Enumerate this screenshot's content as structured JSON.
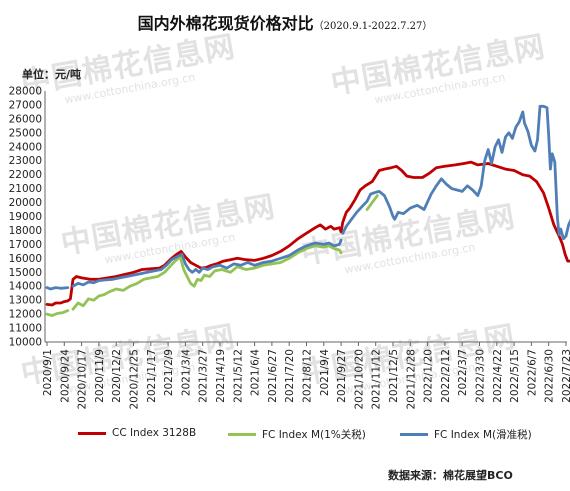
{
  "title": "国内外棉花现货价格对比",
  "title_range": "（2020.9.1-2022.7.27）",
  "unit_label": "单位：元/吨",
  "source": "数据来源：棉花展望BCO",
  "watermark": {
    "text": "中国棉花信息网",
    "url": "www.cottonchina.org.cn"
  },
  "chart_data": {
    "type": "line",
    "title": "国内外棉花现货价格对比",
    "ylabel": "单位：元/吨",
    "ylim": [
      10000,
      28000
    ],
    "ytick_step": 1000,
    "y_ticks": [
      "10000",
      "11000",
      "12000",
      "13000",
      "14000",
      "15000",
      "16000",
      "17000",
      "18000",
      "19000",
      "20000",
      "21000",
      "22000",
      "23000",
      "24000",
      "25000",
      "26000",
      "27000",
      "28000"
    ],
    "x_ticks": [
      "2020/9/1",
      "2020/9/24",
      "2020/10/17",
      "2020/11/9",
      "2020/12/2",
      "2020/12/25",
      "2021/1/17",
      "2021/2/9",
      "2021/3/4",
      "2021/3/27",
      "2021/4/19",
      "2021/5/12",
      "2021/6/4",
      "2021/6/27",
      "2021/7/20",
      "2021/8/12",
      "2021/9/4",
      "2021/9/27",
      "2021/10/20",
      "2021/11/12",
      "2021/12/5",
      "2021/12/28",
      "2022/1/20",
      "2022/2/12",
      "2022/3/7",
      "2022/3/30",
      "2022/4/22",
      "2022/5/15",
      "2022/6/7",
      "2022/6/30",
      "2022/7/23"
    ],
    "grid": false,
    "legend_position": "bottom",
    "series": [
      {
        "name": "CC Index 3128B",
        "color": "#c00000",
        "points": [
          [
            0,
            12700
          ],
          [
            0.3,
            12650
          ],
          [
            0.5,
            12800
          ],
          [
            0.8,
            12800
          ],
          [
            1.0,
            12900
          ],
          [
            1.2,
            12950
          ],
          [
            1.35,
            13100
          ],
          [
            1.5,
            14500
          ],
          [
            1.7,
            14700
          ],
          [
            2.0,
            14600
          ],
          [
            2.5,
            14500
          ],
          [
            3.0,
            14500
          ],
          [
            3.5,
            14600
          ],
          [
            4.0,
            14700
          ],
          [
            4.5,
            14850
          ],
          [
            5.0,
            15000
          ],
          [
            5.5,
            15200
          ],
          [
            6.0,
            15250
          ],
          [
            6.5,
            15300
          ],
          [
            6.8,
            15500
          ],
          [
            7.2,
            16000
          ],
          [
            7.5,
            16300
          ],
          [
            7.75,
            16500
          ],
          [
            8.0,
            16100
          ],
          [
            8.3,
            15700
          ],
          [
            8.6,
            15500
          ],
          [
            8.9,
            15300
          ],
          [
            9.2,
            15350
          ],
          [
            9.5,
            15500
          ],
          [
            9.8,
            15600
          ],
          [
            10.2,
            15800
          ],
          [
            10.6,
            15900
          ],
          [
            11.0,
            16000
          ],
          [
            11.5,
            15900
          ],
          [
            12.0,
            15850
          ],
          [
            12.5,
            16000
          ],
          [
            13.0,
            16200
          ],
          [
            13.5,
            16500
          ],
          [
            14.0,
            16900
          ],
          [
            14.5,
            17400
          ],
          [
            15.0,
            17800
          ],
          [
            15.5,
            18200
          ],
          [
            15.8,
            18400
          ],
          [
            16.1,
            18100
          ],
          [
            16.4,
            18300
          ],
          [
            16.6,
            18100
          ],
          [
            16.9,
            18200
          ],
          [
            17.0,
            17900
          ],
          [
            17.1,
            18600
          ],
          [
            17.3,
            19300
          ],
          [
            17.5,
            19600
          ],
          [
            17.8,
            20200
          ],
          [
            18.1,
            20900
          ],
          [
            18.4,
            21200
          ],
          [
            18.8,
            21500
          ],
          [
            19.2,
            22300
          ],
          [
            19.5,
            22400
          ],
          [
            19.9,
            22500
          ],
          [
            20.2,
            22600
          ],
          [
            20.5,
            22300
          ],
          [
            20.8,
            21900
          ],
          [
            21.2,
            21800
          ],
          [
            21.7,
            21800
          ],
          [
            22.1,
            22100
          ],
          [
            22.5,
            22500
          ],
          [
            23.0,
            22600
          ],
          [
            23.6,
            22700
          ],
          [
            24.1,
            22800
          ],
          [
            24.5,
            22900
          ],
          [
            24.9,
            22700
          ],
          [
            25.5,
            22800
          ],
          [
            26.0,
            22600
          ],
          [
            26.5,
            22400
          ],
          [
            27.0,
            22300
          ],
          [
            27.5,
            22000
          ],
          [
            27.9,
            21900
          ],
          [
            28.3,
            21500
          ],
          [
            28.7,
            20700
          ],
          [
            29.0,
            19600
          ],
          [
            29.3,
            18400
          ],
          [
            29.6,
            17600
          ],
          [
            29.8,
            17000
          ],
          [
            29.95,
            16300
          ],
          [
            30.1,
            15800
          ],
          [
            30.3,
            15800
          ]
        ]
      },
      {
        "name": "FC Index M(1%关税)",
        "color": "#92c353",
        "segments": [
          [
            [
              0,
              12000
            ],
            [
              0.3,
              11900
            ],
            [
              0.6,
              12050
            ],
            [
              0.9,
              12100
            ],
            [
              1.2,
              12250
            ]
          ],
          [
            [
              1.5,
              12350
            ],
            [
              1.8,
              12800
            ],
            [
              2.1,
              12600
            ],
            [
              2.4,
              13100
            ],
            [
              2.7,
              13000
            ],
            [
              3.0,
              13300
            ],
            [
              3.3,
              13400
            ],
            [
              3.6,
              13600
            ],
            [
              4.0,
              13800
            ],
            [
              4.4,
              13700
            ],
            [
              4.8,
              14000
            ],
            [
              5.2,
              14200
            ],
            [
              5.6,
              14500
            ],
            [
              6.0,
              14600
            ],
            [
              6.4,
              14700
            ],
            [
              6.8,
              15000
            ],
            [
              7.1,
              15400
            ],
            [
              7.4,
              15800
            ],
            [
              7.7,
              16100
            ],
            [
              7.9,
              15200
            ],
            [
              8.1,
              14700
            ],
            [
              8.3,
              14200
            ],
            [
              8.5,
              14000
            ],
            [
              8.7,
              14500
            ],
            [
              8.9,
              14400
            ],
            [
              9.1,
              14800
            ],
            [
              9.4,
              14700
            ],
            [
              9.7,
              15100
            ],
            [
              10.1,
              15200
            ],
            [
              10.6,
              15000
            ],
            [
              11.0,
              15400
            ],
            [
              11.5,
              15200
            ],
            [
              12.0,
              15300
            ],
            [
              12.5,
              15500
            ],
            [
              13.0,
              15600
            ],
            [
              13.5,
              15700
            ],
            [
              14.0,
              16000
            ],
            [
              14.5,
              16400
            ],
            [
              15.0,
              16700
            ],
            [
              15.5,
              16900
            ],
            [
              16.0,
              16800
            ],
            [
              16.3,
              16900
            ],
            [
              16.6,
              16700
            ],
            [
              16.9,
              16600
            ],
            [
              17.0,
              16400
            ]
          ],
          [
            [
              18.5,
              19500
            ],
            [
              18.8,
              20000
            ],
            [
              19.1,
              20500
            ]
          ]
        ]
      },
      {
        "name": "FC Index M(滑准税)",
        "color": "#4f7fb6",
        "segments": [
          [
            [
              0,
              13900
            ],
            [
              0.2,
              13800
            ],
            [
              0.5,
              13900
            ],
            [
              0.8,
              13850
            ],
            [
              1.2,
              13900
            ]
          ],
          [
            [
              1.5,
              14000
            ],
            [
              1.8,
              14200
            ],
            [
              2.1,
              14100
            ],
            [
              2.4,
              14300
            ],
            [
              2.7,
              14250
            ],
            [
              3.0,
              14400
            ],
            [
              3.4,
              14450
            ],
            [
              3.8,
              14500
            ],
            [
              4.2,
              14600
            ],
            [
              4.6,
              14700
            ],
            [
              5.0,
              14800
            ],
            [
              5.4,
              14900
            ],
            [
              5.8,
              15000
            ],
            [
              6.2,
              15100
            ],
            [
              6.6,
              15200
            ],
            [
              6.9,
              15500
            ],
            [
              7.2,
              15900
            ],
            [
              7.5,
              16100
            ],
            [
              7.8,
              16300
            ],
            [
              8.0,
              15600
            ],
            [
              8.2,
              15200
            ],
            [
              8.4,
              15000
            ],
            [
              8.6,
              15200
            ],
            [
              8.8,
              15000
            ],
            [
              9.0,
              15300
            ],
            [
              9.3,
              15200
            ],
            [
              9.6,
              15400
            ],
            [
              10.0,
              15500
            ],
            [
              10.4,
              15300
            ],
            [
              10.8,
              15600
            ],
            [
              11.2,
              15500
            ],
            [
              11.6,
              15700
            ],
            [
              12.0,
              15500
            ],
            [
              12.5,
              15700
            ],
            [
              13.0,
              15800
            ],
            [
              13.5,
              16000
            ],
            [
              14.0,
              16200
            ],
            [
              14.5,
              16600
            ],
            [
              15.0,
              16900
            ],
            [
              15.5,
              17100
            ],
            [
              16.0,
              17000
            ],
            [
              16.3,
              17100
            ],
            [
              16.6,
              16900
            ],
            [
              16.9,
              17000
            ],
            [
              17.0,
              17300
            ]
          ],
          [
            [
              17.1,
              17800
            ],
            [
              17.3,
              18300
            ],
            [
              17.6,
              18800
            ],
            [
              17.9,
              19300
            ],
            [
              18.2,
              19700
            ],
            [
              18.5,
              20100
            ],
            [
              18.7,
              20600
            ],
            [
              18.9,
              20700
            ],
            [
              19.2,
              20800
            ],
            [
              19.5,
              20500
            ],
            [
              19.8,
              19700
            ],
            [
              20.0,
              19000
            ],
            [
              20.1,
              18800
            ],
            [
              20.3,
              19300
            ],
            [
              20.6,
              19200
            ],
            [
              21.0,
              19600
            ],
            [
              21.4,
              19800
            ],
            [
              21.8,
              19500
            ],
            [
              22.2,
              20600
            ],
            [
              22.5,
              21200
            ],
            [
              22.8,
              21700
            ],
            [
              23.1,
              21300
            ],
            [
              23.4,
              21000
            ],
            [
              23.7,
              20900
            ],
            [
              24.0,
              20800
            ],
            [
              24.3,
              21200
            ],
            [
              24.6,
              20900
            ],
            [
              24.9,
              20500
            ],
            [
              25.1,
              21200
            ],
            [
              25.3,
              23000
            ],
            [
              25.5,
              23800
            ],
            [
              25.7,
              22800
            ],
            [
              25.9,
              24000
            ],
            [
              26.1,
              24500
            ],
            [
              26.3,
              23600
            ],
            [
              26.5,
              24700
            ],
            [
              26.7,
              25000
            ],
            [
              26.9,
              24600
            ],
            [
              27.1,
              25400
            ],
            [
              27.3,
              25800
            ],
            [
              27.5,
              26500
            ],
            [
              27.6,
              25700
            ],
            [
              27.8,
              25100
            ],
            [
              28.0,
              24100
            ],
            [
              28.2,
              23700
            ],
            [
              28.35,
              24500
            ],
            [
              28.5,
              26900
            ],
            [
              28.7,
              26900
            ],
            [
              28.9,
              26800
            ],
            [
              29.0,
              24800
            ],
            [
              29.1,
              22400
            ],
            [
              29.2,
              23500
            ],
            [
              29.35,
              22900
            ],
            [
              29.5,
              18900
            ],
            [
              29.6,
              17700
            ],
            [
              29.7,
              18100
            ],
            [
              29.85,
              17400
            ],
            [
              30.0,
              17600
            ],
            [
              30.15,
              18400
            ],
            [
              30.3,
              18800
            ],
            [
              30.45,
              18600
            ]
          ]
        ]
      }
    ]
  }
}
